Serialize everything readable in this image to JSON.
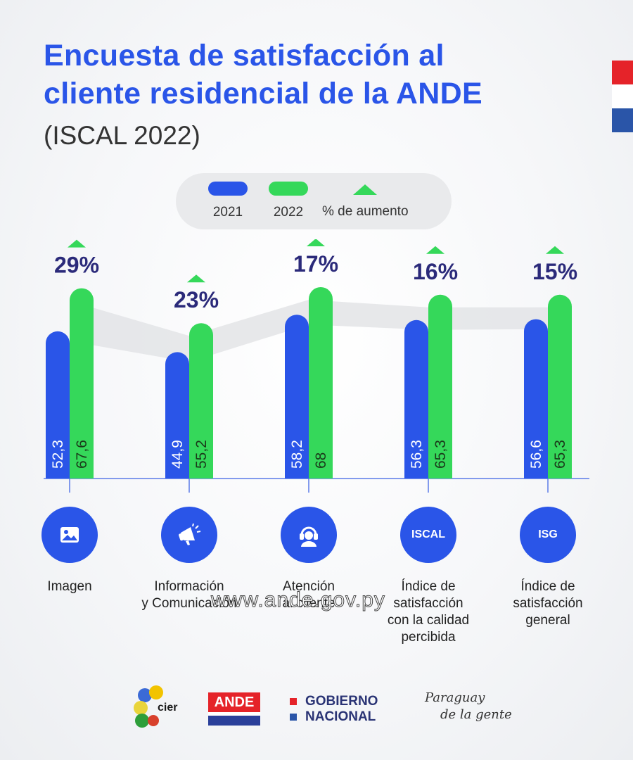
{
  "title": {
    "line1": "Encuesta de satisfacción al",
    "line2": "cliente residencial de la ANDE"
  },
  "subtitle": "(ISCAL 2022)",
  "colors": {
    "y2021": "#2a55e8",
    "y2022": "#35d85a",
    "increase_text": "#2b2a7a",
    "band": "#e3e4e6"
  },
  "legend": {
    "y2021": "2021",
    "y2022": "2022",
    "increase": "% de aumento"
  },
  "chart_data": {
    "type": "bar",
    "categories": [
      "Imagen",
      "Información y Comunicación",
      "Atención al cliente",
      "Índice de satisfacción con la calidad percibida",
      "Índice de satisfacción general"
    ],
    "series": [
      {
        "name": "2021",
        "values": [
          52.3,
          44.9,
          58.2,
          56.3,
          56.6
        ],
        "labels": [
          "52,3",
          "44,9",
          "58,2",
          "56,3",
          "56,6"
        ]
      },
      {
        "name": "2022",
        "values": [
          67.6,
          55.2,
          68,
          65.3,
          65.3
        ],
        "labels": [
          "67,6",
          "55,2",
          "68",
          "65,3",
          "65,3"
        ]
      }
    ],
    "increase_pct": [
      "29%",
      "23%",
      "17%",
      "16%",
      "15%"
    ],
    "ylim": [
      0,
      70
    ],
    "grid": false,
    "legend_position": "top-center"
  },
  "categories": [
    {
      "icon": "image-icon",
      "icon_text": "",
      "label_lines": [
        "Imagen"
      ]
    },
    {
      "icon": "megaphone-icon",
      "icon_text": "",
      "label_lines": [
        "Información",
        "y Comunicación"
      ]
    },
    {
      "icon": "headset-icon",
      "icon_text": "",
      "label_lines": [
        "Atención",
        "al cliente"
      ]
    },
    {
      "icon": "iscal-badge",
      "icon_text": "ISCAL",
      "label_lines": [
        "Índice de",
        "satisfacción",
        "con la calidad",
        "percibida"
      ]
    },
    {
      "icon": "isg-badge",
      "icon_text": "ISG",
      "label_lines": [
        "Índice de",
        "satisfacción",
        "general"
      ]
    }
  ],
  "watermark": "www.ande.gov.py",
  "footer": {
    "cier": "cier",
    "ande": "ANDE",
    "gobierno_line1": "GOBIERNO",
    "gobierno_line2": "NACIONAL",
    "paraguay_line1": "Paraguay",
    "paraguay_line2": "de la gente"
  }
}
